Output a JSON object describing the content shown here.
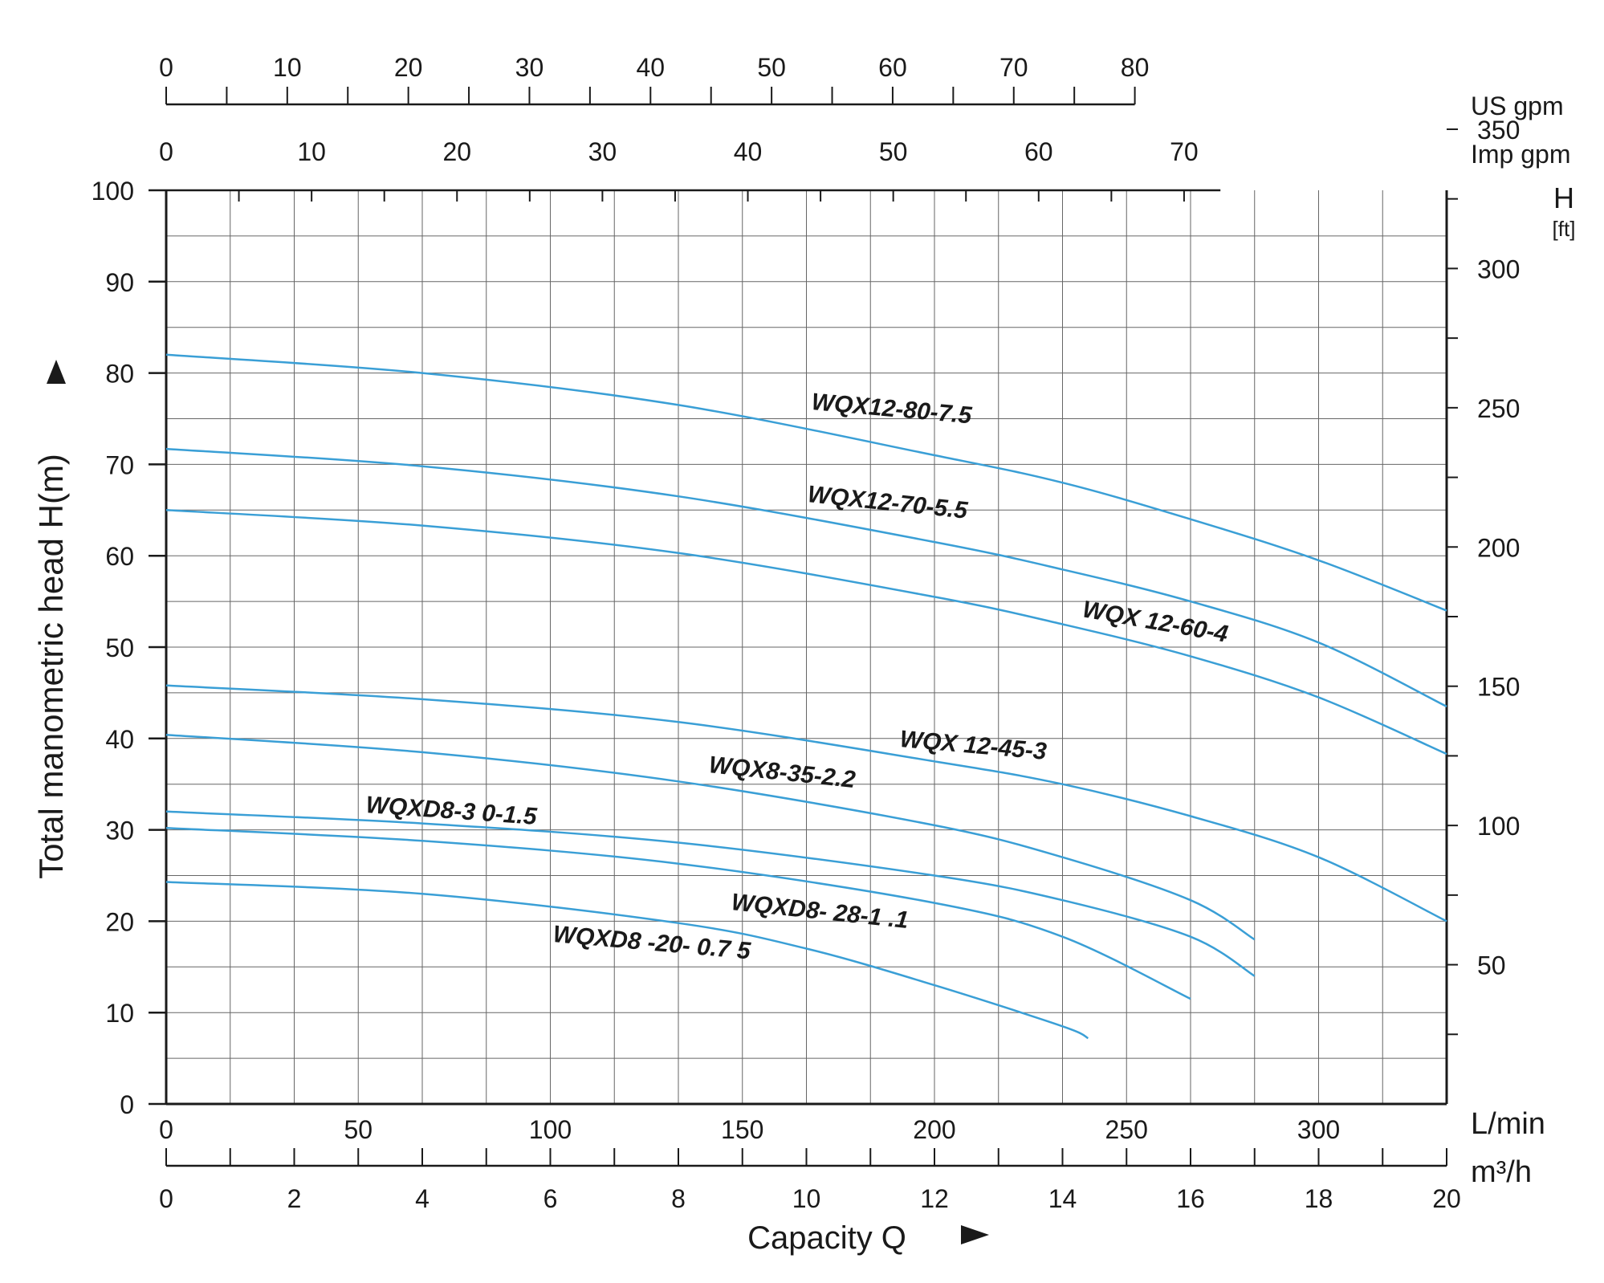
{
  "chart_data": {
    "type": "line",
    "ylabel": "Total manometric head H(m)",
    "xlabel": "Capacity Q",
    "right_axis": {
      "title": "H",
      "unit": "[ft]",
      "ticks": [
        "50",
        "100",
        "150",
        "200",
        "250",
        "300",
        "350"
      ]
    },
    "top_axes": [
      {
        "unit": "US gpm",
        "ticks": [
          "0",
          "10",
          "20",
          "30",
          "40",
          "50",
          "60",
          "70",
          "80"
        ]
      },
      {
        "unit": "Imp gpm",
        "ticks": [
          "0",
          "10",
          "20",
          "30",
          "40",
          "50",
          "60",
          "70"
        ]
      }
    ],
    "bottom_axes": [
      {
        "unit": "L/min",
        "ticks": [
          "0",
          "50",
          "100",
          "150",
          "200",
          "250",
          "300"
        ]
      },
      {
        "unit": "m³/h",
        "ticks": [
          "0",
          "2",
          "4",
          "6",
          "8",
          "10",
          "12",
          "14",
          "16",
          "18",
          "20"
        ]
      }
    ],
    "left_ticks": [
      "0",
      "10",
      "20",
      "30",
      "40",
      "50",
      "60",
      "70",
      "80",
      "90",
      "100"
    ],
    "xlim": [
      0,
      20
    ],
    "ylim": [
      0,
      100
    ],
    "grid": true,
    "line_color": "#3a9fd6",
    "series": [
      {
        "name": "WQX12-80-7.5",
        "x": [
          0,
          4,
          8,
          12,
          14,
          16,
          18,
          20
        ],
        "y": [
          82,
          80,
          76.5,
          71,
          68,
          64,
          59.5,
          54
        ]
      },
      {
        "name": "WQX12-70-5.5",
        "x": [
          0,
          4,
          8,
          12,
          14,
          16,
          18,
          20
        ],
        "y": [
          71.7,
          69.8,
          66.5,
          61.5,
          58.5,
          55,
          50.5,
          43.5
        ]
      },
      {
        "name": "WQX 12-60-4",
        "x": [
          0,
          4,
          8,
          12,
          14,
          16,
          18,
          20
        ],
        "y": [
          65,
          63.3,
          60.3,
          55.5,
          52.5,
          49,
          44.5,
          38.3
        ]
      },
      {
        "name": "WQX 12-45-3",
        "x": [
          0,
          4,
          8,
          12,
          14,
          16,
          18,
          20
        ],
        "y": [
          45.8,
          44.3,
          41.8,
          37.5,
          35,
          31.5,
          27,
          20
        ]
      },
      {
        "name": "WQX8-35-2.2",
        "x": [
          0,
          4,
          8,
          12,
          14,
          16,
          17
        ],
        "y": [
          40.4,
          38.5,
          35.3,
          30.5,
          27,
          22.3,
          18
        ]
      },
      {
        "name": "WQXD8-3 0-1.5",
        "x": [
          0,
          4,
          8,
          12,
          14,
          16,
          17
        ],
        "y": [
          32,
          30.7,
          28.6,
          25,
          22.3,
          18.3,
          14
        ]
      },
      {
        "name": "WQXD8- 28-1 .1",
        "x": [
          0,
          4,
          8,
          12,
          14,
          16
        ],
        "y": [
          30.2,
          28.8,
          26.3,
          22,
          18.3,
          11.5
        ]
      },
      {
        "name": "WQXD8 -20- 0.7 5",
        "x": [
          0,
          4,
          8,
          10,
          12,
          14,
          14.4
        ],
        "y": [
          24.3,
          23,
          19.8,
          17,
          13,
          8.5,
          7.2
        ]
      }
    ]
  }
}
